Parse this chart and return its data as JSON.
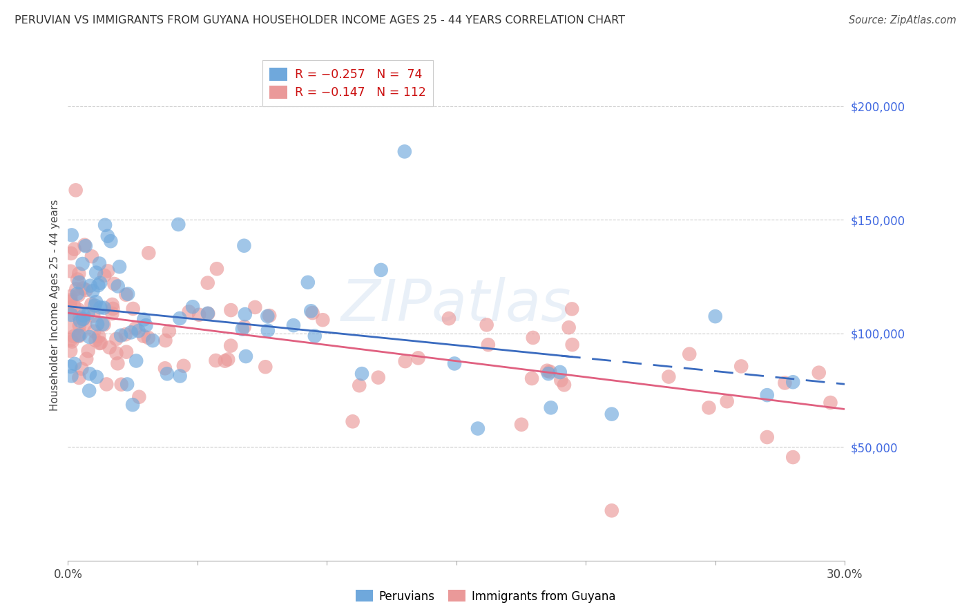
{
  "title": "PERUVIAN VS IMMIGRANTS FROM GUYANA HOUSEHOLDER INCOME AGES 25 - 44 YEARS CORRELATION CHART",
  "source": "Source: ZipAtlas.com",
  "ylabel": "Householder Income Ages 25 - 44 years",
  "xlim": [
    0.0,
    0.3
  ],
  "ylim": [
    0,
    225000
  ],
  "yticks": [
    50000,
    100000,
    150000,
    200000
  ],
  "ytick_labels": [
    "$50,000",
    "$100,000",
    "$150,000",
    "$200,000"
  ],
  "xticks": [
    0.0,
    0.05,
    0.1,
    0.15,
    0.2,
    0.25,
    0.3
  ],
  "xtick_labels": [
    "0.0%",
    "",
    "",
    "",
    "",
    "",
    "30.0%"
  ],
  "peruvians_color": "#6fa8dc",
  "guyana_color": "#ea9999",
  "trendline_peru_color": "#3a6bbf",
  "trendline_guyana_color": "#e06080",
  "watermark": "ZIPatlas",
  "peru_n": 74,
  "guyana_n": 112
}
